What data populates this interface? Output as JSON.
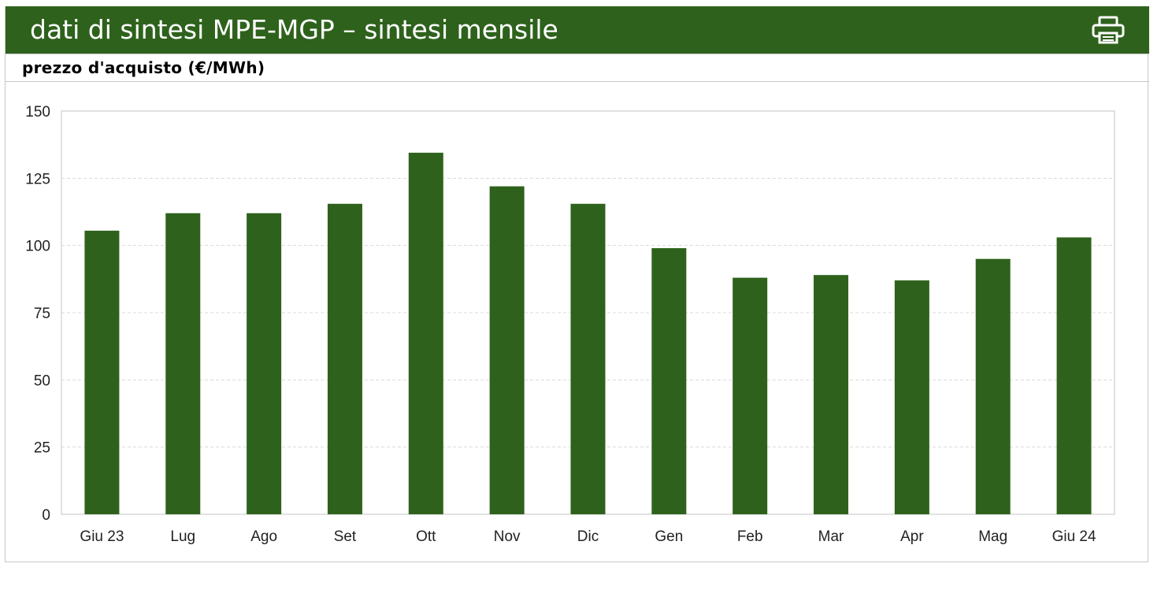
{
  "header": {
    "title": "dati di sintesi MPE-MGP – sintesi mensile"
  },
  "print_icon": "printer-icon",
  "subheader": {
    "title": "prezzo d'acquisto  (€/MWh)"
  },
  "colors": {
    "brand": "#2e621c",
    "bar": "#2e621c",
    "grid": "#d9d9d9",
    "border": "#c8c8c8"
  },
  "chart_data": {
    "type": "bar",
    "categories": [
      "Giu 23",
      "Lug",
      "Ago",
      "Set",
      "Ott",
      "Nov",
      "Dic",
      "Gen",
      "Feb",
      "Mar",
      "Apr",
      "Mag",
      "Giu 24"
    ],
    "values": [
      105.5,
      112,
      112,
      115.5,
      134.5,
      122,
      115.5,
      99,
      88,
      89,
      87,
      95,
      103
    ],
    "title": "prezzo d'acquisto  (€/MWh)",
    "xlabel": "",
    "ylabel": "",
    "ylim": [
      0,
      150
    ],
    "yticks": [
      0,
      25,
      50,
      75,
      100,
      125,
      150
    ],
    "grid": true,
    "legend": "none"
  }
}
